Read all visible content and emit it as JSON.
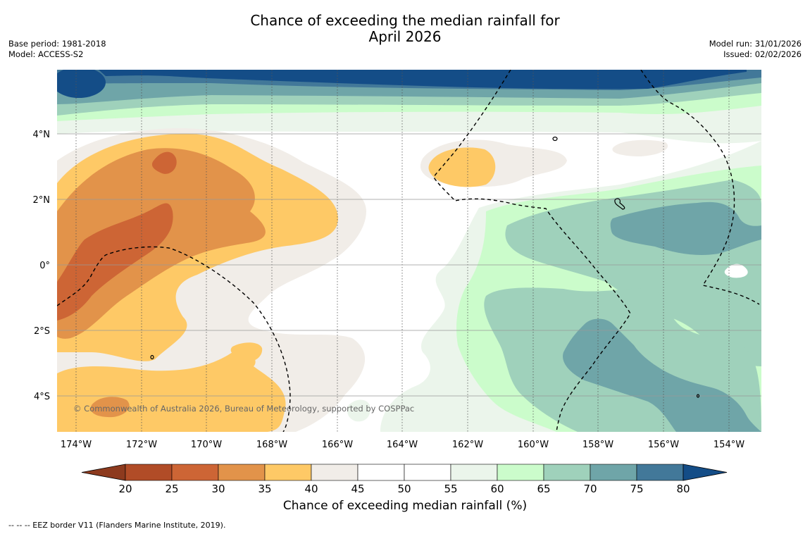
{
  "title": {
    "line1": "Chance of exceeding the median rainfall for",
    "line2": "April 2026"
  },
  "meta_left": {
    "base_period": "Base period: 1981-2018",
    "model": "Model: ACCESS-S2"
  },
  "meta_right": {
    "model_run": "Model run: 31/01/2026",
    "issued": "Issued: 02/02/2026"
  },
  "map": {
    "lon_labels": [
      "174°W",
      "172°W",
      "170°W",
      "168°W",
      "166°W",
      "164°W",
      "162°W",
      "160°W",
      "158°W",
      "156°W",
      "154°W"
    ],
    "lat_labels": [
      "4°N",
      "2°N",
      "0°",
      "2°S",
      "4°S"
    ],
    "copyright": "© Commonwealth of Australia 2026, Bureau of Meteorology, supported by COSPPac",
    "extent": {
      "lon_min": -174.6,
      "lon_max": -153.0,
      "lat_min": -5.15,
      "lat_max": 5.95
    }
  },
  "colorbar": {
    "title": "Chance of exceeding median rainfall (%)",
    "ticks": [
      "20",
      "25",
      "30",
      "35",
      "40",
      "45",
      "50",
      "55",
      "60",
      "65",
      "70",
      "75",
      "80"
    ],
    "colors": [
      "#8d3a1e",
      "#b14c27",
      "#cd6535",
      "#e2934a",
      "#fec966",
      "#f1ede8",
      "#ffffff",
      "#ffffff",
      "#ebf5eb",
      "#cbfccb",
      "#9fd1bb",
      "#6fa5a8",
      "#427899",
      "#144d87"
    ]
  },
  "footer": "--  --  -- EEZ border V11 (Flanders Marine Institute, 2019)."
}
